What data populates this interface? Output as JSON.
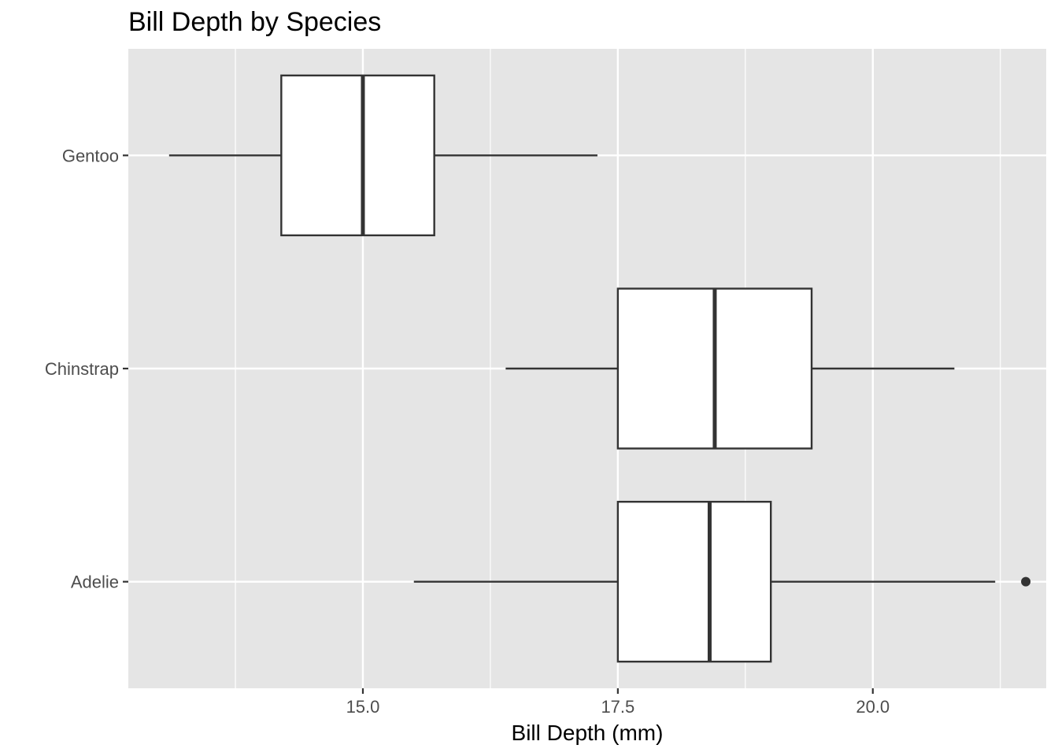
{
  "chart_data": {
    "type": "boxplot",
    "orientation": "horizontal",
    "title": "Bill Depth by Species",
    "xlabel": "Bill Depth (mm)",
    "ylabel": "",
    "xlim": [
      12.7,
      21.7
    ],
    "x_ticks": [
      15.0,
      17.5,
      20.0
    ],
    "x_tick_labels": [
      "15.0",
      "17.5",
      "20.0"
    ],
    "x_minor_ticks": [
      13.75,
      16.25,
      18.75,
      21.25
    ],
    "categories": [
      "Adelie",
      "Chinstrap",
      "Gentoo"
    ],
    "boxes": [
      {
        "category": "Adelie",
        "whisker_low": 15.5,
        "q1": 17.5,
        "median": 18.4,
        "q3": 19.0,
        "whisker_high": 21.2,
        "outliers": [
          21.5
        ]
      },
      {
        "category": "Chinstrap",
        "whisker_low": 16.4,
        "q1": 17.5,
        "median": 18.45,
        "q3": 19.4,
        "whisker_high": 20.8,
        "outliers": []
      },
      {
        "category": "Gentoo",
        "whisker_low": 13.1,
        "q1": 14.2,
        "median": 15.0,
        "q3": 15.7,
        "whisker_high": 17.3,
        "outliers": []
      }
    ],
    "grid": true,
    "legend": "none",
    "colors": {
      "panel_background": "#e5e5e5",
      "grid": "#ffffff",
      "box_fill": "#ffffff",
      "box_stroke": "#333333",
      "tick": "#333333",
      "tick_label": "#4d4d4d"
    }
  }
}
